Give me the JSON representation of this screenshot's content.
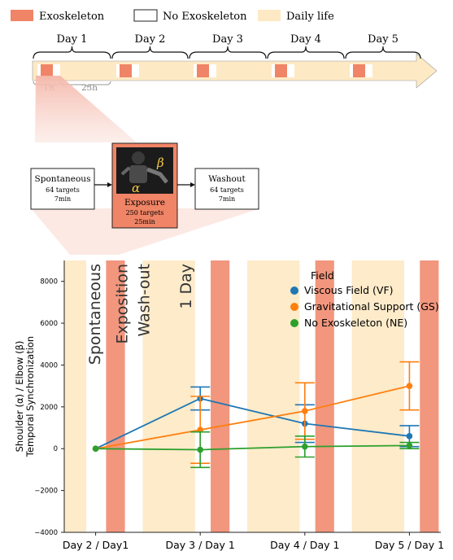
{
  "legend_top": [
    {
      "label": "Exoskeleton",
      "color": "#f08466"
    },
    {
      "label": "No Exoskeleton",
      "color": "#ffffff"
    },
    {
      "label": "Daily life",
      "color": "#fde9c4"
    }
  ],
  "timeline": {
    "days": [
      "Day 1",
      "Day 2",
      "Day 3",
      "Day 4",
      "Day 5"
    ],
    "durations": [
      "1h",
      "23h"
    ]
  },
  "protocol": {
    "spontaneous": {
      "title": "Spontaneous",
      "targets": "64 targets",
      "time": "7min"
    },
    "exposure": {
      "title": "Exposure",
      "targets": "250 targets",
      "time": "25min",
      "alpha": "α",
      "beta": "β"
    },
    "washout": {
      "title": "Washout",
      "targets": "64 targets",
      "time": "7min"
    }
  },
  "colors": {
    "exo": "#f08466",
    "daily": "#fde9c4",
    "vf": "#1f77b4",
    "gs": "#ff7f0e",
    "ne": "#2ca02c"
  },
  "chart_data": {
    "type": "line",
    "ylabel": [
      "Shoulder (α) / Elbow (β)",
      "Temporal Synchronization"
    ],
    "xlabel": "",
    "categories": [
      "Day 2 / Day1",
      "Day 3 / Day 1",
      "Day 4 / Day 1",
      "Day 5 / Day 1"
    ],
    "ylim": [
      -4000,
      9000
    ],
    "yticks": [
      -4000,
      -2000,
      0,
      2000,
      4000,
      6000,
      8000
    ],
    "phase_labels": [
      "Spontaneous",
      "Exposition",
      "Wash-out",
      "1 Day"
    ],
    "legend": {
      "title": "Field",
      "placement": "top-right"
    },
    "series": [
      {
        "name": "Viscous Field (VF)",
        "color": "#1f77b4",
        "values": [
          0,
          2400,
          1200,
          600
        ],
        "errors": [
          0,
          550,
          900,
          500
        ]
      },
      {
        "name": "Gravitational Support (GS)",
        "color": "#ff7f0e",
        "values": [
          0,
          900,
          1800,
          3000
        ],
        "errors": [
          0,
          1600,
          1350,
          1150
        ]
      },
      {
        "name": "No Exoskeleton (NE)",
        "color": "#2ca02c",
        "values": [
          0,
          -50,
          100,
          150
        ],
        "errors": [
          0,
          850,
          500,
          150
        ]
      }
    ]
  }
}
